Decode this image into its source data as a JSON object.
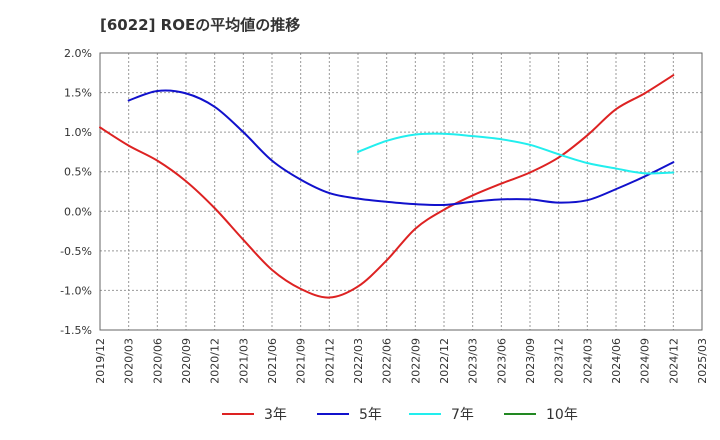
{
  "chart_data": {
    "type": "line",
    "title": "[6022]  ROEの平均値の推移",
    "xlabel": "",
    "ylabel": "",
    "x_ticks": [
      "2019/12",
      "2020/03",
      "2020/06",
      "2020/09",
      "2020/12",
      "2021/03",
      "2021/06",
      "2021/09",
      "2021/12",
      "2022/03",
      "2022/06",
      "2022/09",
      "2022/12",
      "2023/03",
      "2023/06",
      "2023/09",
      "2023/12",
      "2024/03",
      "2024/06",
      "2024/09",
      "2024/12",
      "2025/03"
    ],
    "y_ticks": [
      "2.0%",
      "1.5%",
      "1.0%",
      "0.5%",
      "0.0%",
      "-0.5%",
      "-1.0%",
      "-1.5%"
    ],
    "ylim": [
      -1.5,
      2.0
    ],
    "grid": true,
    "legend_position": "bottom",
    "series": [
      {
        "name": "3年",
        "color": "#dd2222",
        "x": [
          "2019/12",
          "2020/03",
          "2020/06",
          "2020/09",
          "2020/12",
          "2021/03",
          "2021/06",
          "2021/09",
          "2021/12",
          "2022/03",
          "2022/06",
          "2022/09",
          "2022/12",
          "2023/03",
          "2023/06",
          "2023/09",
          "2023/12",
          "2024/03",
          "2024/06",
          "2024/09",
          "2024/12"
        ],
        "values": [
          1.06,
          0.83,
          0.64,
          0.38,
          0.04,
          -0.36,
          -0.74,
          -0.98,
          -1.09,
          -0.95,
          -0.62,
          -0.22,
          0.02,
          0.2,
          0.35,
          0.49,
          0.68,
          0.96,
          1.29,
          1.49,
          1.72
        ]
      },
      {
        "name": "5年",
        "color": "#1111cc",
        "x": [
          "2020/03",
          "2020/06",
          "2020/09",
          "2020/12",
          "2021/03",
          "2021/06",
          "2021/09",
          "2021/12",
          "2022/03",
          "2022/06",
          "2022/09",
          "2022/12",
          "2023/03",
          "2023/06",
          "2023/09",
          "2023/12",
          "2024/03",
          "2024/06",
          "2024/09",
          "2024/12"
        ],
        "values": [
          1.4,
          1.52,
          1.49,
          1.32,
          1.0,
          0.64,
          0.4,
          0.23,
          0.16,
          0.12,
          0.09,
          0.08,
          0.12,
          0.15,
          0.15,
          0.11,
          0.14,
          0.28,
          0.44,
          0.62
        ]
      },
      {
        "name": "7年",
        "color": "#22eeee",
        "x": [
          "2022/03",
          "2022/06",
          "2022/09",
          "2022/12",
          "2023/03",
          "2023/06",
          "2023/09",
          "2023/12",
          "2024/03",
          "2024/06",
          "2024/09",
          "2024/12"
        ],
        "values": [
          0.75,
          0.89,
          0.97,
          0.98,
          0.95,
          0.91,
          0.84,
          0.72,
          0.61,
          0.54,
          0.48,
          0.49
        ]
      },
      {
        "name": "10年",
        "color": "#228822",
        "x": [],
        "values": []
      }
    ]
  }
}
